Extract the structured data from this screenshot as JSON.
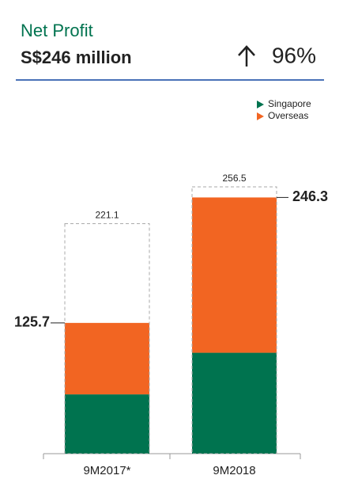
{
  "chart_data": {
    "type": "stacked_bar",
    "title": "Net Profit",
    "subtitle": "S$246 million",
    "change": "96%",
    "categories": [
      "9M2017*",
      "9M2018"
    ],
    "series": [
      {
        "name": "Singapore",
        "color": "#00734f",
        "values": [
          57,
          97
        ]
      },
      {
        "name": "Overseas",
        "color": "#f26522",
        "values": [
          68.7,
          149.3
        ]
      }
    ],
    "totals": [
      125.7,
      246.3
    ],
    "dashed_totals": [
      221.1,
      256.5
    ]
  }
}
